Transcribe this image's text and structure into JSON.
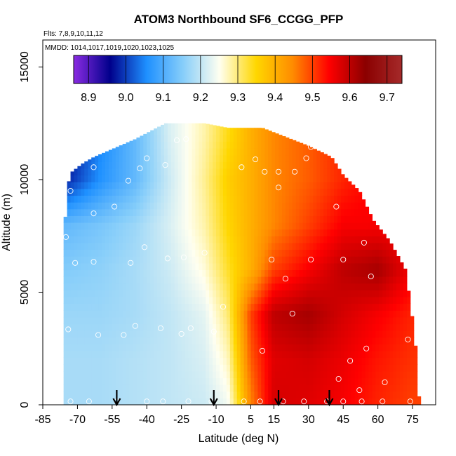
{
  "chart_data": {
    "type": "heatmap",
    "title": "ATOM3 Northbound SF6_CCGG_PFP",
    "flights_text": "Flts: 7,8,9,10,11,12",
    "dates_text": "MMDD: 1014,1017,1019,1020,1023,1025",
    "xlabel": "Latitude (deg N)",
    "ylabel": "Altitude (m)",
    "xlim": [
      -85,
      85
    ],
    "ylim": [
      0,
      16200
    ],
    "x_ticks": [
      -85,
      -70,
      -55,
      -40,
      -25,
      -10,
      5,
      15,
      30,
      45,
      60,
      75
    ],
    "y_ticks": [
      0,
      5000,
      10000,
      15000
    ],
    "colorbar": {
      "min": 8.86,
      "max": 9.74,
      "ticks": [
        8.9,
        9.0,
        9.1,
        9.2,
        9.3,
        9.4,
        9.5,
        9.6,
        9.7
      ],
      "tick_labels": [
        "8.9",
        "9.0",
        "9.1",
        "9.2",
        "9.3",
        "9.4",
        "9.5",
        "9.6",
        "9.7"
      ],
      "colors": [
        "#8a2be2",
        "#00008b",
        "#1e90ff",
        "#87cefa",
        "#fffff0",
        "#ffd700",
        "#ff8c00",
        "#ff0000",
        "#8b0000",
        "#a52a2a"
      ]
    },
    "field_grid": {
      "altitudes": [
        0,
        2000,
        4000,
        6000,
        8000,
        10000,
        12000
      ],
      "latitudes": [
        -75,
        -60,
        -45,
        -30,
        -15,
        -5,
        5,
        15,
        30,
        45,
        60,
        75
      ],
      "values": [
        [
          9.18,
          9.18,
          9.19,
          9.2,
          9.21,
          9.24,
          9.45,
          9.58,
          9.57,
          9.55,
          9.52,
          9.5
        ],
        [
          9.18,
          9.18,
          9.19,
          9.2,
          9.22,
          9.27,
          9.48,
          9.57,
          9.58,
          9.56,
          9.53,
          9.51
        ],
        [
          9.17,
          9.17,
          9.18,
          9.2,
          9.23,
          9.3,
          9.5,
          9.6,
          9.62,
          9.58,
          9.55,
          9.52
        ],
        [
          9.15,
          9.16,
          9.18,
          9.21,
          9.26,
          9.33,
          9.4,
          9.5,
          9.55,
          9.6,
          9.62,
          9.55
        ],
        [
          9.12,
          9.14,
          9.17,
          9.22,
          9.28,
          9.35,
          9.4,
          9.45,
          9.5,
          9.55,
          9.55,
          9.55
        ],
        [
          8.98,
          9.06,
          9.12,
          9.21,
          9.29,
          9.36,
          9.4,
          9.45,
          9.48,
          9.52,
          9.55,
          9.55
        ],
        [
          8.95,
          9.05,
          9.12,
          9.22,
          9.28,
          9.34,
          9.4,
          9.45,
          9.48,
          9.52,
          9.55,
          9.55
        ]
      ]
    },
    "coverage_top": [
      {
        "lat": -76,
        "alt": 5500
      },
      {
        "lat": -75,
        "alt": 9300
      },
      {
        "lat": -73,
        "alt": 10300
      },
      {
        "lat": -68,
        "alt": 10700
      },
      {
        "lat": -63,
        "alt": 11000
      },
      {
        "lat": -45,
        "alt": 11800
      },
      {
        "lat": -32,
        "alt": 12500
      },
      {
        "lat": -15,
        "alt": 12500
      },
      {
        "lat": -5,
        "alt": 12300
      },
      {
        "lat": 10,
        "alt": 12300
      },
      {
        "lat": 30,
        "alt": 11500
      },
      {
        "lat": 40,
        "alt": 11000
      },
      {
        "lat": 45,
        "alt": 10200
      },
      {
        "lat": 52,
        "alt": 9500
      },
      {
        "lat": 58,
        "alt": 8200
      },
      {
        "lat": 65,
        "alt": 7300
      },
      {
        "lat": 72,
        "alt": 6000
      },
      {
        "lat": 76,
        "alt": 3000
      },
      {
        "lat": 78,
        "alt": 0
      }
    ],
    "sample_points": [
      {
        "lat": -73,
        "alt": 150
      },
      {
        "lat": -65,
        "alt": 150
      },
      {
        "lat": -53,
        "alt": 150
      },
      {
        "lat": -40,
        "alt": 150
      },
      {
        "lat": -33,
        "alt": 150
      },
      {
        "lat": -22,
        "alt": 150
      },
      {
        "lat": -12,
        "alt": 150
      },
      {
        "lat": 2,
        "alt": 150
      },
      {
        "lat": 9,
        "alt": 150
      },
      {
        "lat": 19,
        "alt": 150
      },
      {
        "lat": 28,
        "alt": 150
      },
      {
        "lat": 38,
        "alt": 150
      },
      {
        "lat": 45,
        "alt": 150
      },
      {
        "lat": 53,
        "alt": 150
      },
      {
        "lat": 62,
        "alt": 150
      },
      {
        "lat": 74,
        "alt": 150
      },
      {
        "lat": 52,
        "alt": 650
      },
      {
        "lat": 63,
        "alt": 1000
      },
      {
        "lat": 43,
        "alt": 1150
      },
      {
        "lat": 48,
        "alt": 1950
      },
      {
        "lat": 10,
        "alt": 2400
      },
      {
        "lat": 55,
        "alt": 2500
      },
      {
        "lat": -61,
        "alt": 3100
      },
      {
        "lat": -50,
        "alt": 3100
      },
      {
        "lat": -45,
        "alt": 3500
      },
      {
        "lat": -25,
        "alt": 3150
      },
      {
        "lat": -11,
        "alt": 3250
      },
      {
        "lat": -34,
        "alt": 3400
      },
      {
        "lat": -21,
        "alt": 3400
      },
      {
        "lat": -74,
        "alt": 3350
      },
      {
        "lat": 73,
        "alt": 2900
      },
      {
        "lat": 23,
        "alt": 4050
      },
      {
        "lat": -7,
        "alt": 4350
      },
      {
        "lat": 20,
        "alt": 5600
      },
      {
        "lat": 57,
        "alt": 5700
      },
      {
        "lat": -81,
        "alt": 5350
      },
      {
        "lat": -71,
        "alt": 6300
      },
      {
        "lat": -63,
        "alt": 6350
      },
      {
        "lat": -47,
        "alt": 6300
      },
      {
        "lat": -31,
        "alt": 6500
      },
      {
        "lat": -24,
        "alt": 6550
      },
      {
        "lat": -15,
        "alt": 6750
      },
      {
        "lat": 14,
        "alt": 6450
      },
      {
        "lat": 31,
        "alt": 6450
      },
      {
        "lat": 45,
        "alt": 6450
      },
      {
        "lat": 71,
        "alt": 6600
      },
      {
        "lat": -41,
        "alt": 7000
      },
      {
        "lat": 54,
        "alt": 7200
      },
      {
        "lat": -75,
        "alt": 7450
      },
      {
        "lat": -63,
        "alt": 8500
      },
      {
        "lat": -54,
        "alt": 8800
      },
      {
        "lat": 42,
        "alt": 8800
      },
      {
        "lat": 17,
        "alt": 9650
      },
      {
        "lat": -73,
        "alt": 9500
      },
      {
        "lat": -48,
        "alt": 9950
      },
      {
        "lat": 1,
        "alt": 10550
      },
      {
        "lat": 11,
        "alt": 10350
      },
      {
        "lat": 17,
        "alt": 10350
      },
      {
        "lat": 24,
        "alt": 10350
      },
      {
        "lat": -32,
        "alt": 10650
      },
      {
        "lat": -63,
        "alt": 10550
      },
      {
        "lat": -43,
        "alt": 10500
      },
      {
        "lat": 7,
        "alt": 10900
      },
      {
        "lat": -40,
        "alt": 10950
      },
      {
        "lat": 29,
        "alt": 10950
      },
      {
        "lat": -27,
        "alt": 11750
      },
      {
        "lat": -23,
        "alt": 11800
      },
      {
        "lat": 31,
        "alt": 11450
      }
    ],
    "arrows_lat": [
      -53,
      -11,
      17,
      39
    ]
  }
}
